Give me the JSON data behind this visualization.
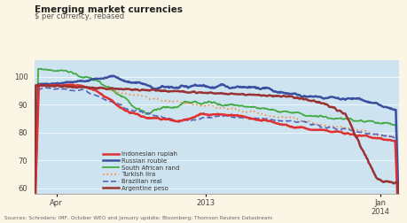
{
  "title": "Emerging market currencies",
  "subtitle": "$ per currency, rebased",
  "source": "Sources: Schroders; IMF, October WEO and January update; Bloomberg; Thomson Reuters Datastream",
  "bg_color": "#faf5e4",
  "plot_bg_color": "#cde4f0",
  "yticks": [
    60,
    70,
    80,
    90,
    100
  ],
  "ylim": [
    58,
    106
  ],
  "xlim": [
    0,
    1.0
  ],
  "xtick_pos": [
    0.06,
    0.47,
    0.95
  ],
  "xtick_labels": [
    "Apr",
    "2013",
    "Jan\n2014"
  ],
  "idr_color": "#e03030",
  "rub_color": "#3a4fa0",
  "zar_color": "#44aa44",
  "try_color": "#ff8833",
  "brl_color": "#5566bb",
  "ars_color": "#993333",
  "legend_entries": [
    "Indonesian rupiah",
    "Russian rouble",
    "South African rand",
    "Turkish lira",
    "Brazilian real",
    "Argentine peso"
  ]
}
